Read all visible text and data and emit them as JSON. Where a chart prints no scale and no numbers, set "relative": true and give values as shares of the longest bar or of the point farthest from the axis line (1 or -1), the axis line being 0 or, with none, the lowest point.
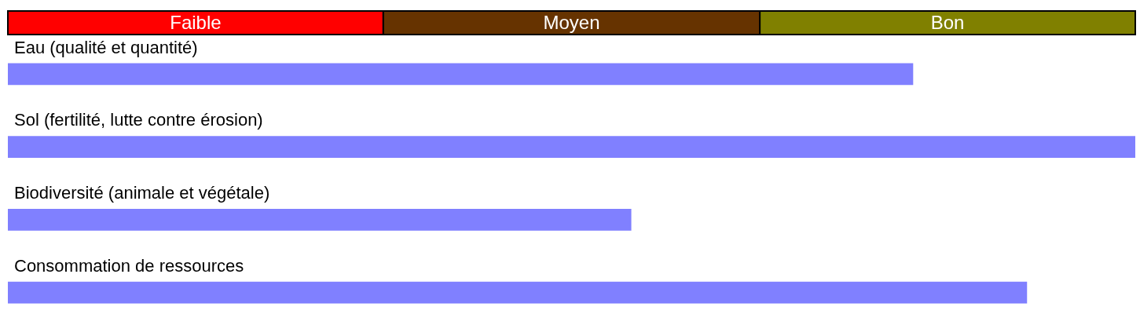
{
  "chart_data": {
    "type": "bar",
    "orientation": "horizontal",
    "relative": true,
    "categories": [
      "Eau (qualité et quantité)",
      "Sol (fertilité, lutte contre érosion)",
      "Biodiversité (animale et végétale)",
      "Consommation de ressources"
    ],
    "values": [
      0.803,
      1,
      0.553,
      0.904
    ],
    "color": "#8080ff",
    "bands": [
      {
        "axis": "x",
        "from": 0,
        "to": 0.333,
        "label": "Faible",
        "color": "#ff0000"
      },
      {
        "axis": "x",
        "from": 0.333,
        "to": 0.667,
        "label": "Moyen",
        "color": "#663300"
      },
      {
        "axis": "x",
        "from": 0.667,
        "to": 1,
        "label": "Bon",
        "color": "#808000"
      }
    ]
  }
}
